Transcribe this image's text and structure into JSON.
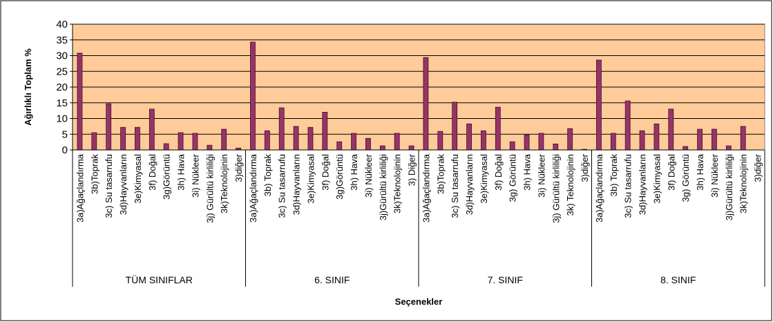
{
  "chart_data": {
    "type": "bar",
    "y_label": "Ağırlıklı Toplam %",
    "x_label": "Seçenekler",
    "color": "#993366",
    "background": "#ffcc99",
    "grid": true,
    "ylim": [
      0,
      40
    ],
    "yticks": [
      0,
      5,
      10,
      15,
      20,
      25,
      30,
      35,
      40
    ],
    "groups": [
      {
        "name": "TÜM SINIFLAR",
        "categories": [
          "3a)Ağaçlandırma",
          "3b)Toprak",
          "3c) Su tasarrufu",
          "3d)Hayvanların",
          "3e)Kimyasal",
          "3f) Doğal",
          "3g)Görüntü",
          "3h)  Hava",
          "3i) Nükleer",
          "3j) Gürültü kirliliği",
          "3k)Teknolojinin",
          "3)diğer"
        ],
        "values": [
          30.8,
          5.5,
          14.7,
          7.2,
          7.2,
          13,
          2,
          5.5,
          5.3,
          1.5,
          6.6,
          0.6
        ]
      },
      {
        "name": "6. SINIF",
        "categories": [
          "3a)Ağaçlandırma",
          "3b) Toprak",
          "3c) Su tasarrufu",
          "3d)Hayvanların",
          "3e)Kimyasal",
          "3f) Doğal",
          "3g)Görüntü",
          "3h)  Hava",
          "3i) Nükleer",
          "3j)Gürültü kirliliği",
          "3k)Teknolojinin",
          "3) Diğer"
        ],
        "values": [
          34.3,
          6.1,
          13.4,
          7.5,
          7.2,
          12,
          2.6,
          5.3,
          3.7,
          1.3,
          5.3,
          1.3
        ]
      },
      {
        "name": "7. SINIF",
        "categories": [
          "3a)Ağaçlandırma",
          "3b)Toprak",
          "3c) Su tasarrufu",
          "3d)Hayvanların",
          "3e)Kimyasal",
          "3f) Doğal",
          "3g) Görüntü",
          "3h) Hava",
          "3i) Nükleer",
          "3j) Gürültü kirliliği",
          "3k) Teknolojinin",
          "3)diğer"
        ],
        "values": [
          29.4,
          5.9,
          15.2,
          8.3,
          6.1,
          13.6,
          2.6,
          4.8,
          5.3,
          1.9,
          6.8,
          0.2
        ]
      },
      {
        "name": "8. SINIF",
        "categories": [
          "3a)Ağaçlandırma",
          "3b) Toprak",
          "3c) Su tasarrufu",
          "3d)Hayvanların",
          "3e)Kimyasal",
          "3f) Doğal",
          "3g) Görüntü",
          "3h)  Hava",
          "3i) Nükleer",
          "3j)Gürültü kirliliği",
          "3k)Teknolojinin",
          "3)diğer"
        ],
        "values": [
          28.6,
          5.3,
          15.6,
          6.1,
          8.3,
          13,
          1.1,
          6.6,
          6.6,
          1.3,
          7.5,
          0
        ]
      }
    ]
  }
}
